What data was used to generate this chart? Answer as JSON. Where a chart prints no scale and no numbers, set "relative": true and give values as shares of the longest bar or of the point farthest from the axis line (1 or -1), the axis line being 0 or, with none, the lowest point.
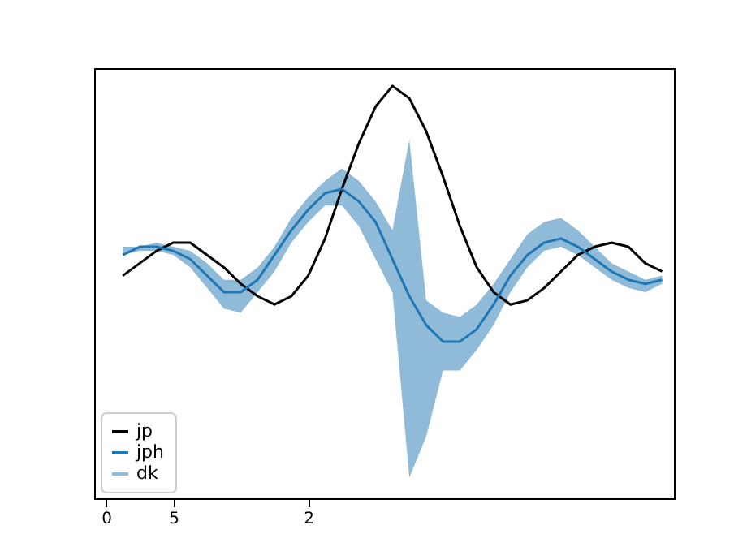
{
  "chart_data": {
    "type": "line",
    "relative": true,
    "legend": "bottom left",
    "tick_labels": "x",
    "grid": false,
    "categories": [
      "0",
      null,
      null,
      null,
      "5",
      null,
      null,
      null,
      null,
      null,
      null,
      null,
      "2",
      null,
      null,
      null,
      null,
      null,
      null,
      null,
      null,
      null,
      null,
      null,
      null,
      null,
      null,
      null,
      null,
      null,
      null,
      null,
      null,
      null
    ],
    "series": [
      {
        "name": "jp",
        "color": "#000000",
        "values": [
          null,
          0.54,
          0.57,
          0.6,
          0.62,
          0.62,
          0.59,
          0.56,
          0.52,
          0.49,
          0.47,
          0.49,
          0.54,
          0.63,
          0.75,
          0.86,
          0.95,
          1.0,
          0.97,
          0.89,
          0.78,
          0.66,
          0.56,
          0.5,
          0.47,
          0.48,
          0.51,
          0.55,
          0.59,
          0.61,
          0.62,
          0.61,
          0.57,
          0.55
        ]
      },
      {
        "name": "jph",
        "color": "#1f77b4",
        "values": [
          null,
          0.59,
          0.61,
          0.61,
          0.6,
          0.58,
          0.54,
          0.5,
          0.5,
          0.53,
          0.59,
          0.65,
          0.7,
          0.74,
          0.75,
          0.72,
          0.67,
          0.58,
          0.49,
          0.42,
          0.38,
          0.38,
          0.41,
          0.47,
          0.54,
          0.59,
          0.62,
          0.63,
          0.61,
          0.58,
          0.55,
          0.53,
          0.52,
          0.53
        ],
        "lower": [
          null,
          0.59,
          0.6,
          0.6,
          0.59,
          0.56,
          0.51,
          0.46,
          0.45,
          0.5,
          0.55,
          0.62,
          0.67,
          0.71,
          0.71,
          0.66,
          0.58,
          0.5,
          0.05,
          0.15,
          0.31,
          0.31,
          0.36,
          0.42,
          0.5,
          0.56,
          0.6,
          0.61,
          0.59,
          0.56,
          0.53,
          0.51,
          0.5,
          0.52
        ],
        "upper": [
          null,
          0.61,
          0.61,
          0.62,
          0.61,
          0.6,
          0.57,
          0.53,
          0.53,
          0.56,
          0.61,
          0.68,
          0.73,
          0.77,
          0.8,
          0.77,
          0.72,
          0.65,
          0.87,
          0.48,
          0.45,
          0.44,
          0.47,
          0.52,
          0.58,
          0.64,
          0.67,
          0.68,
          0.65,
          0.61,
          0.57,
          0.55,
          0.53,
          0.54
        ]
      }
    ],
    "annotations": [
      "dk"
    ]
  }
}
